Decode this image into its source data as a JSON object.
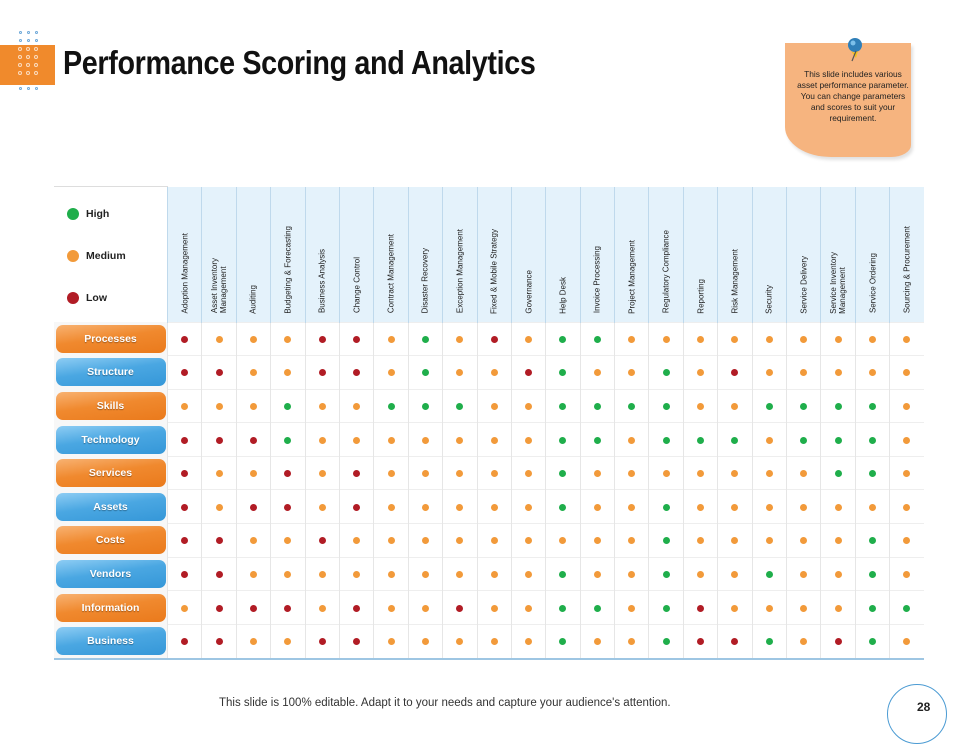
{
  "title": "Performance Scoring and Analytics",
  "note_text": "This slide includes various asset performance parameter. You can change parameters and scores to suit your requirement.",
  "legend": [
    {
      "label": "High",
      "color": "#1fae4b"
    },
    {
      "label": "Medium",
      "color": "#f29a3a"
    },
    {
      "label": "Low",
      "color": "#b11c25"
    }
  ],
  "columns": [
    "Adoption Management",
    "Asset Inventory\nManagement",
    "Auditing",
    "Budgeting & Forecasting",
    "Business Analysis",
    "Change Control",
    "Contract Management",
    "Disaster Recovery",
    "Exception Management",
    "Fixed & Mobile Strategy",
    "Governance",
    "Help Desk",
    "Invoice Processing",
    "Project Management",
    "Regulatory Compliance",
    "Reporting",
    "Risk Management",
    "Security",
    "Service Delivery",
    "Service Inventory\nManagement",
    "Service Ordering",
    "Sourcing & Procurement"
  ],
  "rows": [
    {
      "label": "Processes",
      "style": "orange",
      "scores": [
        "L",
        "M",
        "M",
        "M",
        "L",
        "L",
        "M",
        "H",
        "M",
        "L",
        "M",
        "H",
        "H",
        "M",
        "M",
        "M",
        "M",
        "M",
        "M",
        "M",
        "M",
        "M"
      ]
    },
    {
      "label": "Structure",
      "style": "blue",
      "scores": [
        "L",
        "L",
        "M",
        "M",
        "L",
        "L",
        "M",
        "H",
        "M",
        "M",
        "L",
        "H",
        "M",
        "M",
        "H",
        "M",
        "L",
        "M",
        "M",
        "M",
        "M",
        "M"
      ]
    },
    {
      "label": "Skills",
      "style": "orange",
      "scores": [
        "M",
        "M",
        "M",
        "H",
        "M",
        "M",
        "H",
        "H",
        "H",
        "M",
        "M",
        "H",
        "H",
        "H",
        "H",
        "M",
        "M",
        "H",
        "H",
        "H",
        "H",
        "M"
      ]
    },
    {
      "label": "Technology",
      "style": "blue",
      "scores": [
        "L",
        "L",
        "L",
        "H",
        "M",
        "M",
        "M",
        "M",
        "M",
        "M",
        "M",
        "H",
        "H",
        "M",
        "H",
        "H",
        "H",
        "M",
        "H",
        "H",
        "H",
        "M"
      ]
    },
    {
      "label": "Services",
      "style": "orange",
      "scores": [
        "L",
        "M",
        "M",
        "L",
        "M",
        "L",
        "M",
        "M",
        "M",
        "M",
        "M",
        "H",
        "M",
        "M",
        "M",
        "M",
        "M",
        "M",
        "M",
        "H",
        "H",
        "M"
      ]
    },
    {
      "label": "Assets",
      "style": "blue",
      "scores": [
        "L",
        "M",
        "L",
        "L",
        "M",
        "L",
        "M",
        "M",
        "M",
        "M",
        "M",
        "H",
        "M",
        "M",
        "H",
        "M",
        "M",
        "M",
        "M",
        "M",
        "M",
        "M"
      ]
    },
    {
      "label": "Costs",
      "style": "orange",
      "scores": [
        "L",
        "L",
        "M",
        "M",
        "L",
        "M",
        "M",
        "M",
        "M",
        "M",
        "M",
        "M",
        "M",
        "M",
        "H",
        "M",
        "M",
        "M",
        "M",
        "M",
        "H",
        "M"
      ]
    },
    {
      "label": "Vendors",
      "style": "blue",
      "scores": [
        "L",
        "L",
        "M",
        "M",
        "M",
        "M",
        "M",
        "M",
        "M",
        "M",
        "M",
        "H",
        "M",
        "M",
        "H",
        "M",
        "M",
        "H",
        "M",
        "M",
        "H",
        "M"
      ]
    },
    {
      "label": "Information",
      "style": "orange",
      "scores": [
        "M",
        "L",
        "L",
        "L",
        "M",
        "L",
        "M",
        "M",
        "L",
        "M",
        "M",
        "H",
        "H",
        "M",
        "H",
        "L",
        "M",
        "M",
        "M",
        "M",
        "H",
        "H"
      ]
    },
    {
      "label": "Business",
      "style": "blue",
      "scores": [
        "L",
        "L",
        "M",
        "M",
        "L",
        "L",
        "M",
        "M",
        "M",
        "M",
        "M",
        "H",
        "M",
        "M",
        "H",
        "L",
        "L",
        "H",
        "M",
        "L",
        "H",
        "M"
      ]
    }
  ],
  "colors": {
    "high": "#1fae4b",
    "medium": "#f29a3a",
    "low": "#b11c25",
    "header_bg": "#e4f2fb",
    "accent": "#f08a2c"
  },
  "footer": "This slide is 100% editable. Adapt it to your needs and capture your audience's attention.",
  "page_number": "28"
}
